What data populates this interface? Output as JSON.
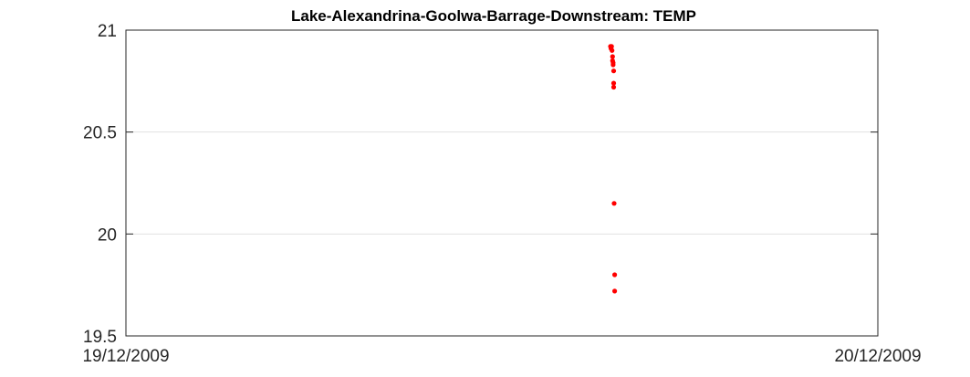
{
  "chart_data": {
    "type": "scatter",
    "title": "Lake-Alexandrina-Goolwa-Barrage-Downstream: TEMP",
    "xlabel": "",
    "ylabel": "",
    "x_axis": {
      "min": "2009-12-19T00:00",
      "max": "2009-12-20T00:00",
      "tick_labels": [
        "19/12/2009",
        "20/12/2009"
      ]
    },
    "y_axis": {
      "min": 19.5,
      "max": 21,
      "ticks": [
        19.5,
        20,
        20.5,
        21
      ],
      "tick_labels": [
        "19.5",
        "20",
        "20.5",
        "21"
      ]
    },
    "grid": "horizontal",
    "marker_color": "#ff0000",
    "points": [
      {
        "x": "2009-12-19T15:28",
        "y": 20.92
      },
      {
        "x": "2009-12-19T15:29",
        "y": 20.91
      },
      {
        "x": "2009-12-19T15:30",
        "y": 20.92
      },
      {
        "x": "2009-12-19T15:31",
        "y": 20.9
      },
      {
        "x": "2009-12-19T15:32",
        "y": 20.87
      },
      {
        "x": "2009-12-19T15:32",
        "y": 20.85
      },
      {
        "x": "2009-12-19T15:33",
        "y": 20.84
      },
      {
        "x": "2009-12-19T15:33",
        "y": 20.83
      },
      {
        "x": "2009-12-19T15:34",
        "y": 20.8
      },
      {
        "x": "2009-12-19T15:34",
        "y": 20.74
      },
      {
        "x": "2009-12-19T15:34",
        "y": 20.72
      },
      {
        "x": "2009-12-19T15:35",
        "y": 20.15
      },
      {
        "x": "2009-12-19T15:36",
        "y": 19.8
      },
      {
        "x": "2009-12-19T15:36",
        "y": 19.72
      }
    ]
  }
}
